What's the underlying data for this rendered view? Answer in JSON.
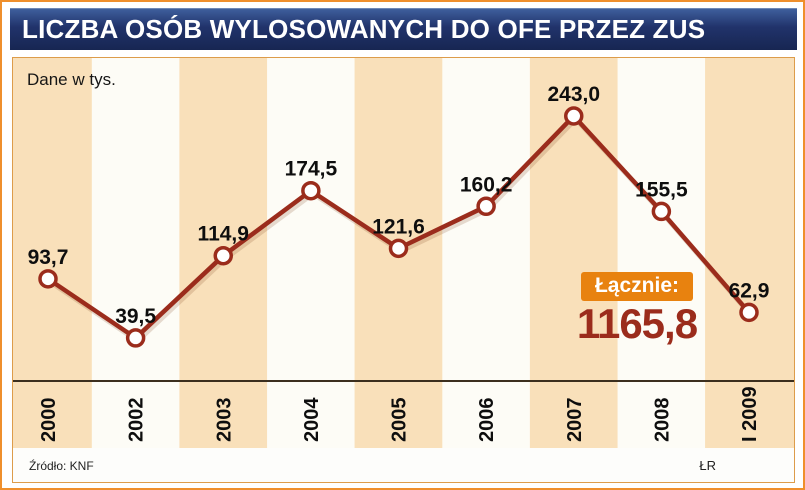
{
  "header": {
    "title": "LICZBA OSÓB WYLOSOWANYCH DO OFE PRZEZ ZUS"
  },
  "panel": {
    "note": "Dane w tys.",
    "total_label": "Łącznie:",
    "total_value": "1165,8",
    "source": "Źródło: KNF",
    "credit": "ŁR"
  },
  "colors": {
    "header_navy": "#21336b",
    "accent_orange": "#e8820f",
    "line_red": "#9b2c1c",
    "panel_cream": "#f9e0ba",
    "band_white": "#fdfcf6",
    "frame_orange": "#ef8f2c"
  },
  "chart_data": {
    "type": "line",
    "title": "LICZBA OSÓB WYLOSOWANYCH DO OFE PRZEZ ZUS",
    "note": "Dane w tys.",
    "categories": [
      "2000",
      "2002",
      "2003",
      "2004",
      "2005",
      "2006",
      "2007",
      "2008",
      "I 2009"
    ],
    "values": [
      93.7,
      39.5,
      114.9,
      174.5,
      121.6,
      160.2,
      243.0,
      155.5,
      62.9
    ],
    "value_labels": [
      "93,7",
      "39,5",
      "114,9",
      "174,5",
      "121,6",
      "160,2",
      "243,0",
      "155,5",
      "62,9"
    ],
    "total": 1165.8,
    "total_label": "Łącznie:",
    "unit": "tys.",
    "ylim": [
      0,
      260
    ],
    "legend": "none",
    "grid": "alternating vertical bands",
    "source": "KNF",
    "line_color": "#9b2c1c",
    "marker_fill": "#ffffff",
    "band_colors": [
      "#f9e0ba",
      "#fdfcf6"
    ]
  }
}
